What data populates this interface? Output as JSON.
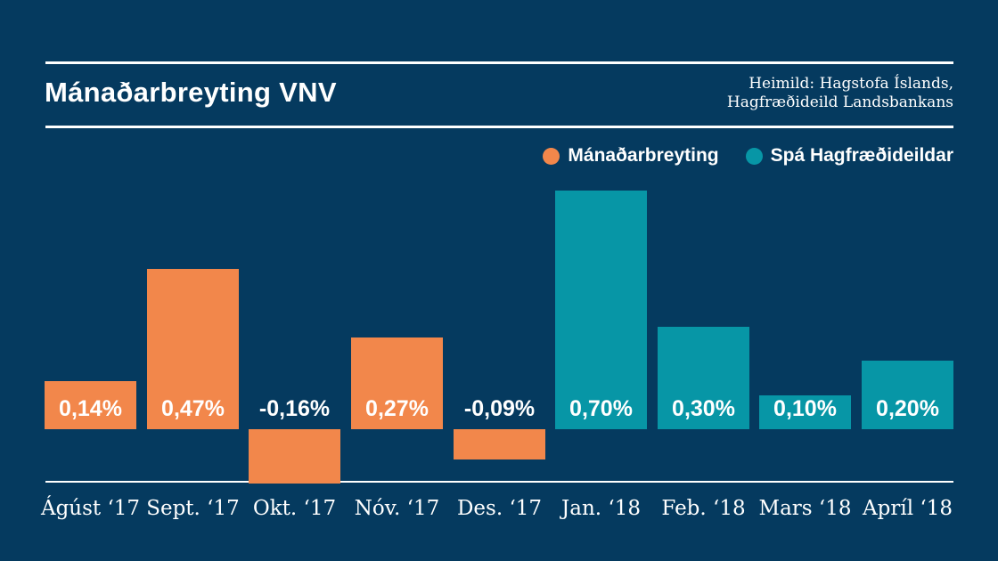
{
  "header": {
    "title": "Mánaðarbreyting VNV",
    "source_line1": "Heimild: Hagstofa Íslands,",
    "source_line2": "Hagfræðideild Landsbankans"
  },
  "legend": {
    "items": [
      {
        "label": "Mánaðarbreyting",
        "color": "#F2874B",
        "series_key": "actual"
      },
      {
        "label": "Spá Hagfræðideildar",
        "color": "#0796A6",
        "series_key": "forecast"
      }
    ]
  },
  "colors": {
    "background": "#053A5F",
    "actual": "#F2874B",
    "forecast": "#0796A6",
    "text": "#FFFFFF",
    "rule": "#FFFFFF"
  },
  "chart_data": {
    "type": "bar",
    "title": "Mánaðarbreyting VNV",
    "categories": [
      "Ágúst ‘17",
      "Sept. ‘17",
      "Okt. ‘17",
      "Nóv. ‘17",
      "Des. ‘17",
      "Jan. ‘18",
      "Feb. ‘18",
      "Mars ‘18",
      "Apríl ‘18"
    ],
    "values": [
      0.14,
      0.47,
      -0.16,
      0.27,
      -0.09,
      0.7,
      0.3,
      0.1,
      0.2
    ],
    "labels": [
      "0,14%",
      "0,47%",
      "-0,16%",
      "0,27%",
      "-0,09%",
      "0,70%",
      "0,30%",
      "0,10%",
      "0,20%"
    ],
    "series_key": [
      "actual",
      "actual",
      "actual",
      "actual",
      "actual",
      "forecast",
      "forecast",
      "forecast",
      "forecast"
    ],
    "series": [
      {
        "name": "Mánaðarbreyting",
        "color": "#F2874B",
        "categories": [
          "Ágúst ‘17",
          "Sept. ‘17",
          "Okt. ‘17",
          "Nóv. ‘17",
          "Des. ‘17"
        ],
        "values": [
          0.14,
          0.47,
          -0.16,
          0.27,
          -0.09
        ]
      },
      {
        "name": "Spá Hagfræðideildar",
        "color": "#0796A6",
        "categories": [
          "Jan. ‘18",
          "Feb. ‘18",
          "Mars ‘18",
          "Apríl ‘18"
        ],
        "values": [
          0.7,
          0.3,
          0.1,
          0.2
        ]
      }
    ],
    "unit": "%",
    "xlabel": "",
    "ylabel": "",
    "ylim": [
      -0.25,
      0.75
    ],
    "grid": false,
    "legend_position": "top-right"
  }
}
